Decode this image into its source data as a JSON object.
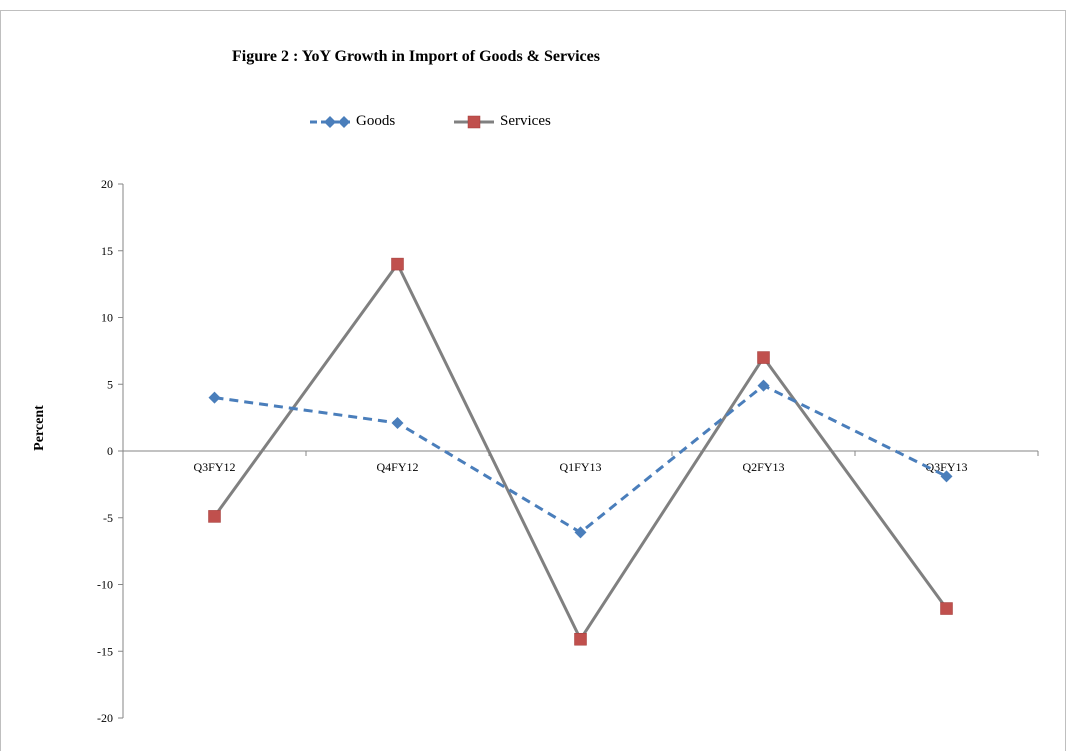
{
  "chart_data": {
    "type": "line",
    "title": "Figure 2 : YoY Growth in Import of Goods & Services",
    "ylabel": "Percent",
    "xlabel": "",
    "categories": [
      "Q3FY12",
      "Q4FY12",
      "Q1FY13",
      "Q2FY13",
      "Q3FY13"
    ],
    "ylim": [
      -20,
      20
    ],
    "yticks": [
      20,
      15,
      10,
      5,
      0,
      -5,
      -10,
      -15,
      -20
    ],
    "legend_position": "top",
    "grid": false,
    "series": [
      {
        "name": "Goods",
        "values": [
          4,
          2.1,
          -6.1,
          4.9,
          -1.9
        ],
        "color": "#4a7ebb",
        "line_style": "dashed",
        "marker": "diamond"
      },
      {
        "name": "Services",
        "values": [
          -4.9,
          14,
          -14.1,
          7,
          -11.8
        ],
        "color": "#808080",
        "marker_color": "#c0504d",
        "line_style": "solid",
        "marker": "square"
      }
    ]
  }
}
